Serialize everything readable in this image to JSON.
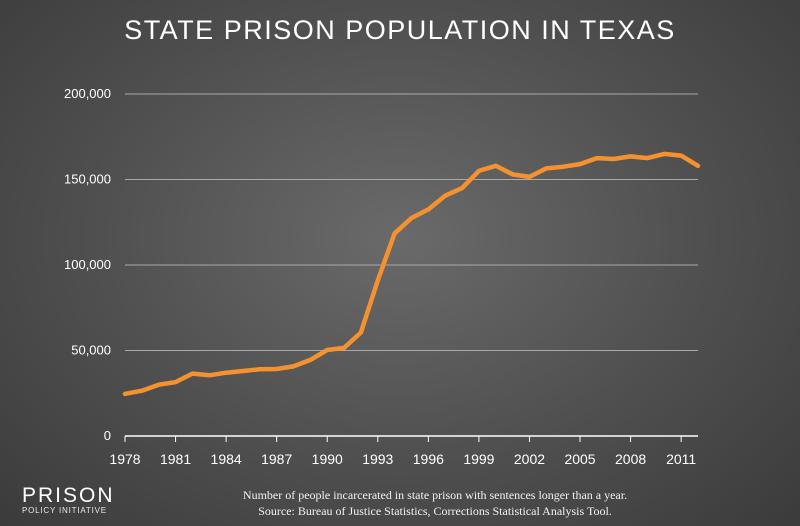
{
  "logo": {
    "line1": "PRISON",
    "line2": "POLICY INITIATIVE"
  },
  "footnote": {
    "line1": "Number of people incarcerated in state prison with sentences longer than a year.",
    "line2": "Source: Bureau of Justice Statistics, Corrections Statistical Analysis Tool."
  },
  "colors": {
    "line": "#f5922f",
    "grid": "#a9a9a9",
    "text": "#ffffff"
  },
  "chart_data": {
    "type": "line",
    "title": "STATE PRISON POPULATION IN TEXAS",
    "xlabel": "",
    "ylabel": "",
    "ylim": [
      0,
      200000
    ],
    "xlim": [
      1978,
      2012
    ],
    "grid": true,
    "yticks": [
      {
        "value": 0,
        "label": "0"
      },
      {
        "value": 50000,
        "label": "50,000"
      },
      {
        "value": 100000,
        "label": "100,000"
      },
      {
        "value": 150000,
        "label": "150,000"
      },
      {
        "value": 200000,
        "label": "200,000"
      }
    ],
    "xticks": [
      {
        "value": 1978,
        "label": "1978"
      },
      {
        "value": 1981,
        "label": "1981"
      },
      {
        "value": 1984,
        "label": "1984"
      },
      {
        "value": 1987,
        "label": "1987"
      },
      {
        "value": 1990,
        "label": "1990"
      },
      {
        "value": 1993,
        "label": "1993"
      },
      {
        "value": 1996,
        "label": "1996"
      },
      {
        "value": 1999,
        "label": "1999"
      },
      {
        "value": 2002,
        "label": "2002"
      },
      {
        "value": 2005,
        "label": "2005"
      },
      {
        "value": 2008,
        "label": "2008"
      },
      {
        "value": 2011,
        "label": "2011"
      }
    ],
    "series": [
      {
        "x": [
          1978,
          1979,
          1980,
          1981,
          1982,
          1983,
          1984,
          1985,
          1986,
          1987,
          1988,
          1989,
          1990,
          1991,
          1992,
          1993,
          1994,
          1995,
          1996,
          1997,
          1998,
          1999,
          2000,
          2001,
          2002,
          2003,
          2004,
          2005,
          2006,
          2007,
          2008,
          2009,
          2010,
          2011,
          2012
        ],
        "values": [
          24600,
          26500,
          30000,
          31500,
          36500,
          35500,
          37000,
          38000,
          39000,
          39200,
          40700,
          44500,
          50300,
          51500,
          60500,
          91000,
          118500,
          127500,
          132500,
          140500,
          145000,
          155000,
          158000,
          153000,
          151500,
          156500,
          157500,
          159000,
          162500,
          162000,
          163500,
          162500,
          165000,
          164000,
          158000
        ]
      }
    ]
  }
}
